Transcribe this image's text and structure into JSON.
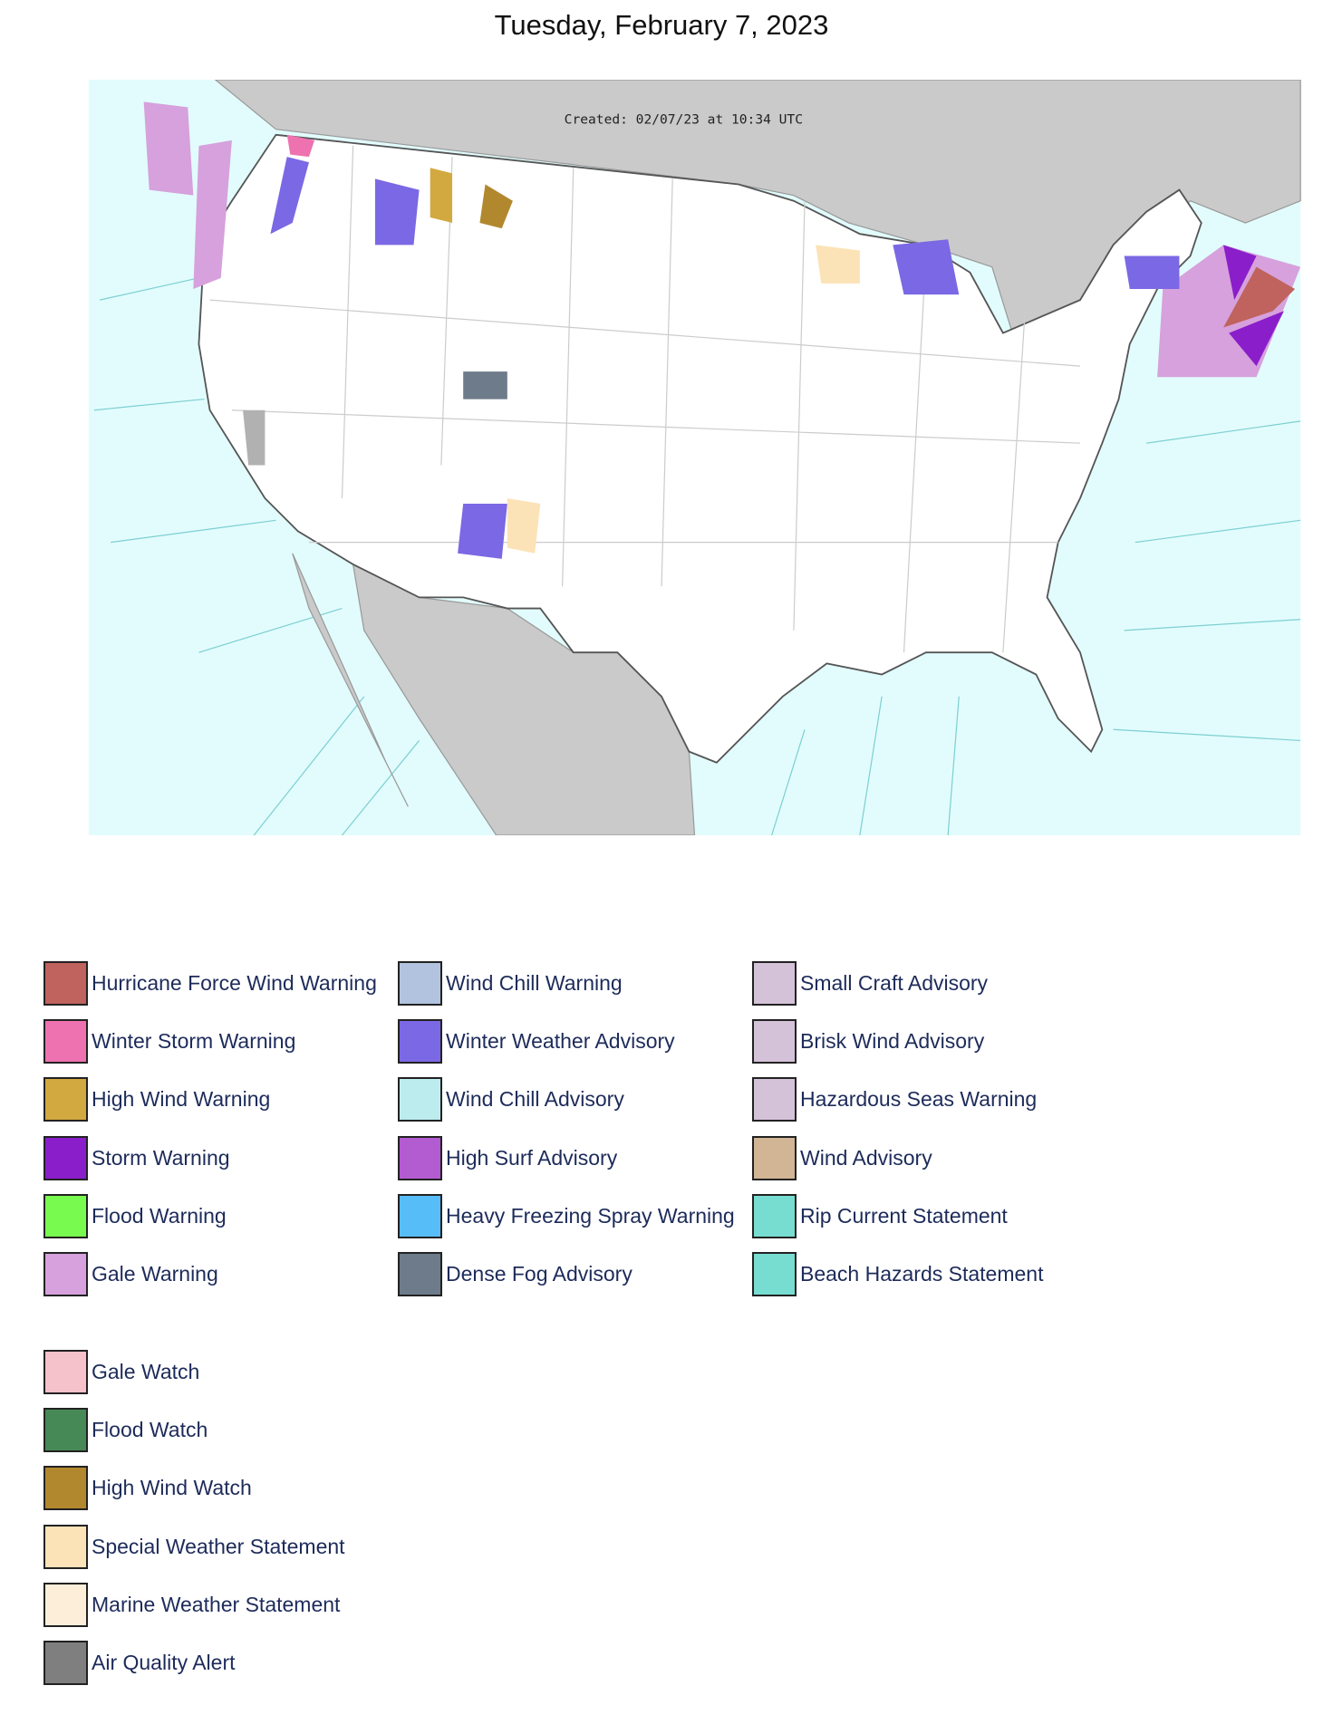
{
  "title": "Tuesday, February 7, 2023",
  "map": {
    "created": "Created: 02/07/23 at 10:34 UTC"
  },
  "legend": {
    "warnings": [
      {
        "label": "Hurricane Force Wind Warning",
        "color": "#c0625d"
      },
      {
        "label": "Winter Storm Warning",
        "color": "#ee72b0"
      },
      {
        "label": "High Wind Warning",
        "color": "#d2a840"
      },
      {
        "label": "Storm Warning",
        "color": "#8a1ecb"
      },
      {
        "label": "Flood Warning",
        "color": "#78fb4e"
      },
      {
        "label": "Gale Warning",
        "color": "#d6a1dc"
      },
      {
        "label": "Wind Chill Warning",
        "color": "#b1c3de"
      },
      {
        "label": "Winter Weather Advisory",
        "color": "#7b68e4"
      },
      {
        "label": "Wind Chill Advisory",
        "color": "#bceced"
      },
      {
        "label": "High Surf Advisory",
        "color": "#b35bd1"
      },
      {
        "label": "Heavy Freezing Spray Warning",
        "color": "#57bdf8"
      },
      {
        "label": "Dense Fog Advisory",
        "color": "#6e7b8a"
      },
      {
        "label": "Small Craft Advisory",
        "color": "#d4c2d8"
      },
      {
        "label": "Brisk Wind Advisory",
        "color": "#d4c2d8"
      },
      {
        "label": "Hazardous Seas Warning",
        "color": "#d4c2d8"
      },
      {
        "label": "Wind Advisory",
        "color": "#d1b595"
      },
      {
        "label": "Rip Current Statement",
        "color": "#77ddd0"
      },
      {
        "label": "Beach Hazards Statement",
        "color": "#77ddd0"
      }
    ],
    "watches": [
      {
        "label": "Gale Watch",
        "color": "#f5c1cb"
      },
      {
        "label": "Flood Watch",
        "color": "#478956"
      },
      {
        "label": "High Wind Watch",
        "color": "#b2882e"
      },
      {
        "label": "Special Weather Statement",
        "color": "#fbe3b7"
      },
      {
        "label": "Marine Weather Statement",
        "color": "#fdeed9"
      },
      {
        "label": "Air Quality Alert",
        "color": "#7f7f7f"
      }
    ]
  }
}
